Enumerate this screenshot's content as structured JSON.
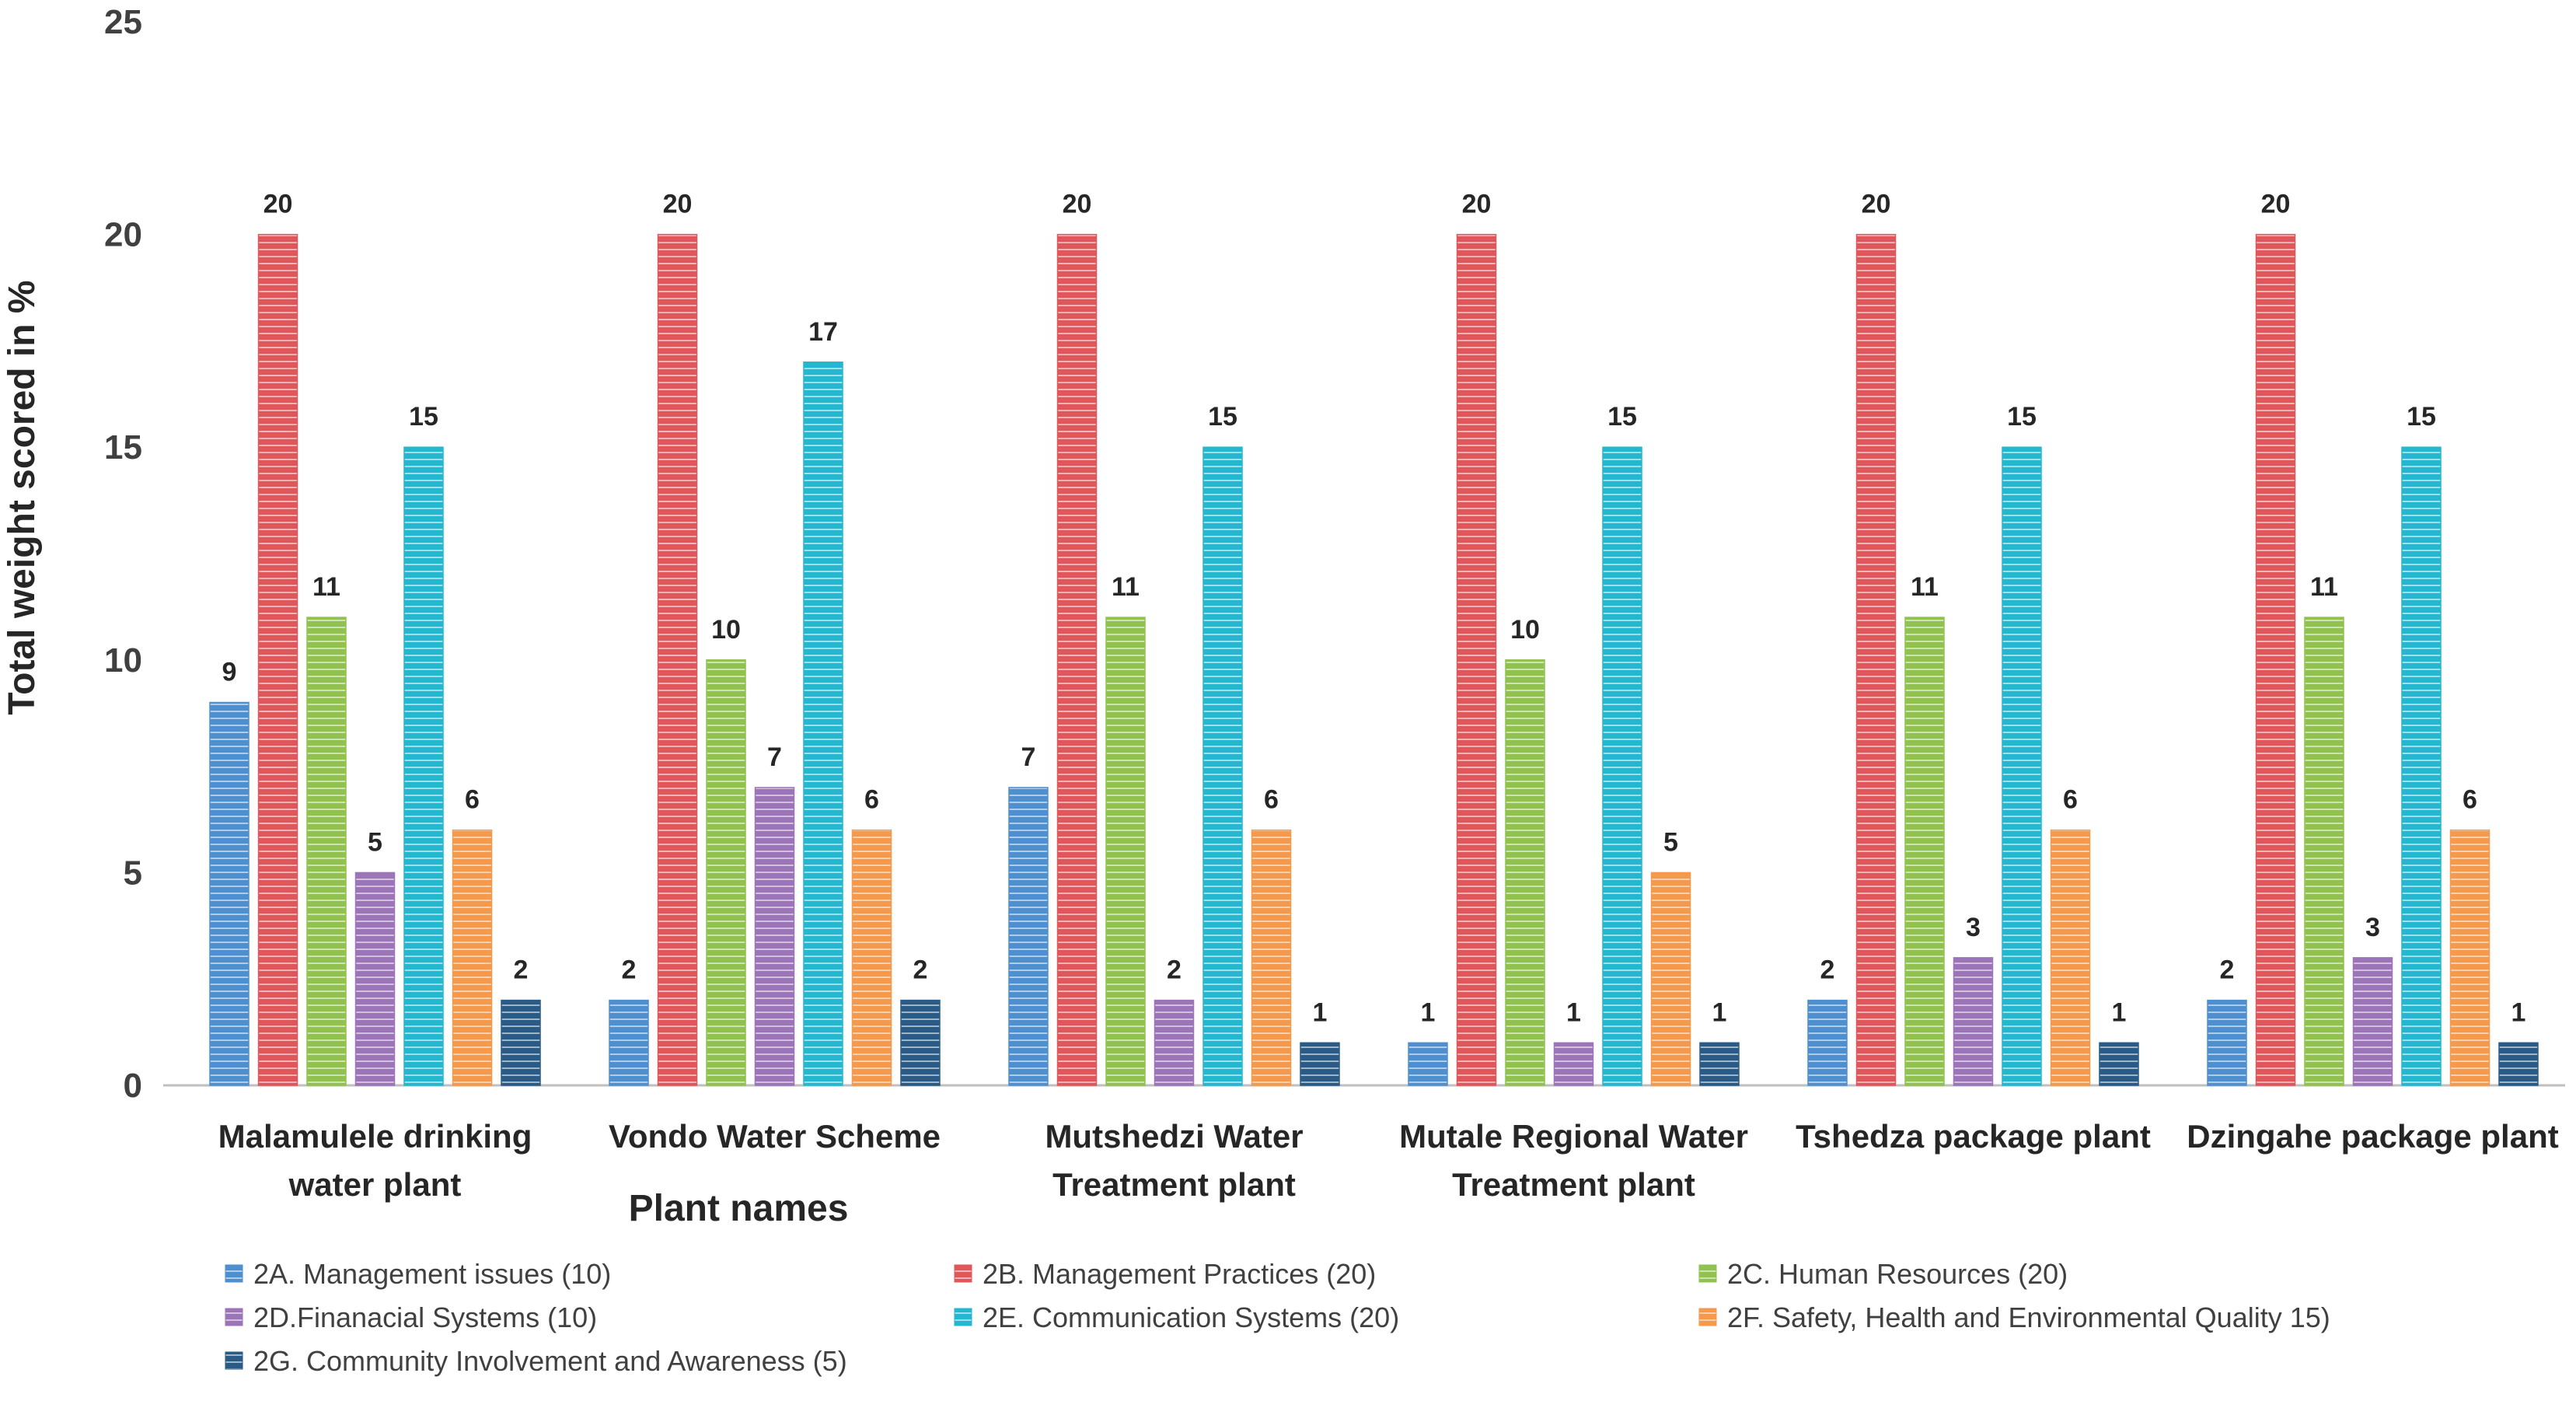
{
  "chart_data": {
    "type": "bar",
    "title": "",
    "xlabel": "Plant names",
    "ylabel": "Total weight scored in %",
    "ylim": [
      0,
      25
    ],
    "yticks": [
      0,
      5,
      10,
      15,
      20,
      25
    ],
    "grid": false,
    "legend_position": "bottom",
    "categories": [
      [
        "Malamulele drinking",
        "water plant"
      ],
      [
        "Vondo Water Scheme"
      ],
      [
        "Mutshedzi Water",
        "Treatment plant"
      ],
      [
        "Mutale Regional Water",
        "Treatment plant"
      ],
      [
        "Tshedza package plant"
      ],
      [
        "Dzingahe package plant"
      ]
    ],
    "series": [
      {
        "name": "2A. Management issues (10)",
        "color": "#4E8FD0",
        "values": [
          9,
          2,
          7,
          1,
          2,
          2
        ]
      },
      {
        "name": "2B. Management Practices (20)",
        "color": "#E0575B",
        "values": [
          20,
          20,
          20,
          20,
          20,
          20
        ]
      },
      {
        "name": "2C. Human Resources (20)",
        "color": "#91C24F",
        "values": [
          11,
          10,
          11,
          10,
          11,
          11
        ]
      },
      {
        "name": "2D.Finanacial Systems (10)",
        "color": "#9C74B8",
        "values": [
          5,
          7,
          2,
          1,
          3,
          3
        ]
      },
      {
        "name": "2E. Communication Systems (20)",
        "color": "#25B7D0",
        "values": [
          15,
          17,
          15,
          15,
          15,
          15
        ]
      },
      {
        "name": "2F. Safety, Health and Environmental Quality 15)",
        "color": "#F59A4C",
        "values": [
          6,
          6,
          6,
          5,
          6,
          6
        ]
      },
      {
        "name": "2G. Community Involvement and Awareness (5)",
        "color": "#2A5A86",
        "values": [
          2,
          2,
          1,
          1,
          1,
          1
        ]
      }
    ]
  }
}
